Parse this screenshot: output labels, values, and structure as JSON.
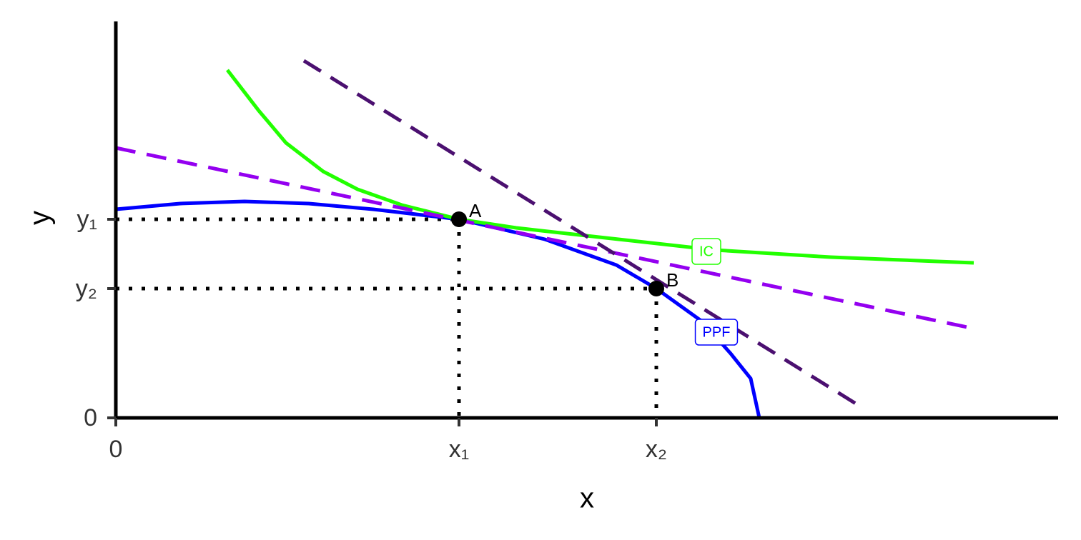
{
  "chart_data": {
    "type": "line",
    "x_label": "x",
    "y_label": "y",
    "xlim": [
      0,
      1318
    ],
    "ylim": [
      0,
      555
    ],
    "xticks": [
      0,
      {
        "value": 480,
        "label": "x₁"
      },
      {
        "value": 756,
        "label": "x₂"
      }
    ],
    "yticks": [
      0,
      {
        "value": 181,
        "label": "y₂"
      },
      {
        "value": 278,
        "label": "y₁"
      }
    ],
    "series": [
      {
        "name": "PPF",
        "color": "#0000ff",
        "dashed": false,
        "x": [
          0,
          90,
          180,
          270,
          360,
          480,
          600,
          700,
          756,
          820,
          860,
          888,
          900
        ],
        "values": [
          292,
          300,
          303,
          300,
          292,
          278,
          250,
          214,
          181,
          135,
          90,
          55,
          0
        ]
      },
      {
        "name": "IC",
        "color": "#22ff00",
        "dashed": false,
        "x": [
          156,
          200,
          238,
          290,
          338,
          400,
          480,
          560,
          658,
          838,
          1000,
          1200
        ],
        "values": [
          487,
          430,
          385,
          345,
          320,
          298,
          278,
          266,
          255,
          235,
          225,
          217
        ]
      },
      {
        "color": "#9400f0",
        "dashed": true,
        "x": [
          0,
          1200
        ],
        "values": [
          378,
          125
        ]
      },
      {
        "color": "#4b1070",
        "dashed": true,
        "x": [
          263,
          1043
        ],
        "values": [
          500,
          15
        ]
      }
    ],
    "points": [
      {
        "label": "A",
        "x": 480,
        "y": 278
      },
      {
        "label": "B",
        "x": 756,
        "y": 181
      }
    ]
  }
}
